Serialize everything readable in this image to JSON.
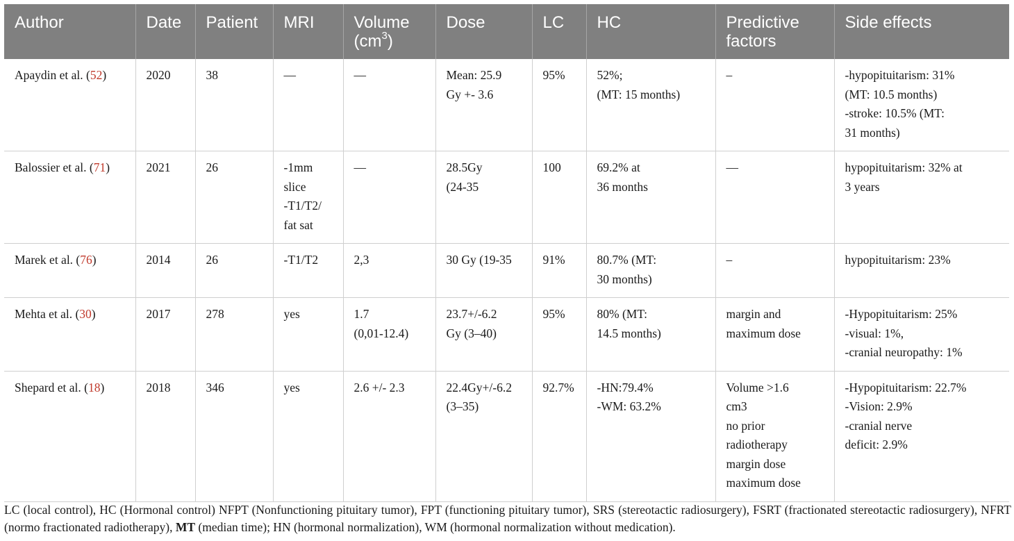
{
  "table": {
    "headers": [
      [
        "Author"
      ],
      [
        "Date"
      ],
      [
        "Patient"
      ],
      [
        "MRI"
      ],
      [
        "Volume",
        "(cm",
        "3",
        ")"
      ],
      [
        "Dose"
      ],
      [
        "LC"
      ],
      [
        "HC"
      ],
      [
        "Predictive",
        "factors"
      ],
      [
        "Side effects"
      ]
    ],
    "rows": [
      {
        "author": "Apaydin et al. (",
        "ref": "52",
        "ref_close": ")",
        "date": "2020",
        "patient": "38",
        "mri": [
          "—"
        ],
        "volume": [
          "—"
        ],
        "dose": [
          "Mean: 25.9",
          "Gy +- 3.6"
        ],
        "lc": "95%",
        "hc": [
          "52%;",
          "(MT: 15 months)"
        ],
        "predictive": [
          "–"
        ],
        "side_effects": [
          "-hypopituitarism: 31%",
          "(MT: 10.5 months)",
          "-stroke: 10.5% (MT:",
          "31 months)"
        ]
      },
      {
        "author": "Balossier et al. (",
        "ref": "71",
        "ref_close": ")",
        "date": "2021",
        "patient": "26",
        "mri": [
          "-1mm",
          "slice",
          "-T1/T2/",
          "fat sat"
        ],
        "volume": [
          "—"
        ],
        "dose": [
          "28.5Gy",
          "(24-35"
        ],
        "lc": "100",
        "hc": [
          "69.2% at",
          "36 months"
        ],
        "predictive": [
          "—"
        ],
        "side_effects": [
          "hypopituitarism: 32% at",
          "3 years"
        ]
      },
      {
        "author": "Marek et al. (",
        "ref": "76",
        "ref_close": ")",
        "date": "2014",
        "patient": "26",
        "mri": [
          "-T1/T2"
        ],
        "volume": [
          "2,3"
        ],
        "dose": [
          "30 Gy (19-35"
        ],
        "lc": "91%",
        "hc": [
          "80.7% (MT:",
          "30 months)"
        ],
        "predictive": [
          "–"
        ],
        "side_effects": [
          "hypopituitarism: 23%"
        ]
      },
      {
        "author": "Mehta et al. (",
        "ref": "30",
        "ref_close": ")",
        "date": "2017",
        "patient": "278",
        "mri": [
          "yes"
        ],
        "volume": [
          "1.7",
          "(0,01-12.4)"
        ],
        "dose": [
          "23.7+/-6.2",
          "Gy (3–40)"
        ],
        "lc": "95%",
        "hc": [
          "80% (MT:",
          "14.5 months)"
        ],
        "predictive": [
          "margin and",
          "maximum dose"
        ],
        "side_effects": [
          "-Hypopituitarism: 25%",
          "-visual: 1%,",
          "-cranial neuropathy: 1%"
        ]
      },
      {
        "author": "Shepard et al. (",
        "ref": "18",
        "ref_close": ")",
        "date": "2018",
        "patient": "346",
        "mri": [
          "yes"
        ],
        "volume": [
          "2.6 +/- 2.3"
        ],
        "dose": [
          "22.4Gy+/-6.2",
          "(3–35)"
        ],
        "lc": "92.7%",
        "hc": [
          "-HN:79.4%",
          "-WM: 63.2%"
        ],
        "predictive": [
          "Volume >1.6",
          "cm3",
          "no prior",
          "radiotherapy",
          "margin dose",
          "maximum dose"
        ],
        "side_effects": [
          "-Hypopituitarism: 22.7%",
          "-Vision: 2.9%",
          "-cranial nerve",
          "deficit: 2.9%"
        ]
      }
    ]
  },
  "footnote": {
    "line1_before_mt": "LC (local control), HC (Hormonal control) NFPT (Nonfunctioning pituitary tumor), FPT (functioning pituitary tumor), SRS (stereotactic radiosurgery), FSRT (fractionated stereotactic radiosurgery), NFRT (normo fractionated radiotherapy), ",
    "mt_bold": "MT",
    "after_mt": " (median time); HN (hormonal normalization), WM (hormonal normalization without medication)."
  },
  "colors": {
    "header_bg": "#808080",
    "header_text": "#ffffff",
    "reference_link": "#c0392b",
    "grid_line": "#cfcfcf"
  }
}
